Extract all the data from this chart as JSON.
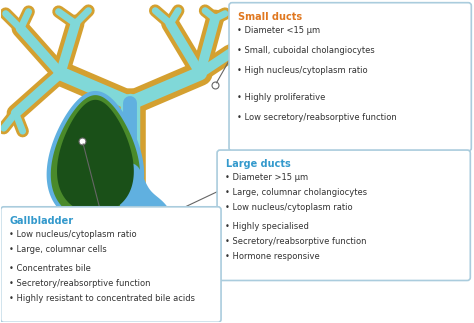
{
  "background_color": "#ffffff",
  "small_ducts_title": "Small ducts",
  "small_ducts_title_color": "#e07820",
  "small_ducts_bullets": [
    "Diameter <15 μm",
    "Small, cuboidal cholangiocytes",
    "High nucleus/cytoplasm ratio",
    "",
    "Highly proliferative",
    "Low secretory/reabsorptive function"
  ],
  "large_ducts_title": "Large ducts",
  "large_ducts_title_color": "#3399cc",
  "large_ducts_bullets": [
    "Diameter >15 μm",
    "Large, columnar cholangiocytes",
    "Low nucleus/cytoplasm ratio",
    "",
    "Highly specialised",
    "Secretory/reabsorptive function",
    "Hormone responsive"
  ],
  "gallbladder_title": "Gallbladder",
  "gallbladder_title_color": "#3399cc",
  "gallbladder_bullets": [
    "Low nucleus/cytoplasm ratio",
    "Large, columnar cells",
    "",
    "Concentrates bile",
    "Secretory/reabsorptive function",
    "Highly resistant to concentrated bile acids"
  ],
  "box_border_color": "#aaccdd",
  "box_fill_color": "#ffffff",
  "bullet_text_color": "#333333",
  "tree_color_outer": "#d4a030",
  "tree_color_inner": "#80d8d8",
  "main_duct_color": "#60b0e0",
  "gallbladder_green_light": "#4a8a2a",
  "gallbladder_green_dark": "#1a5018"
}
